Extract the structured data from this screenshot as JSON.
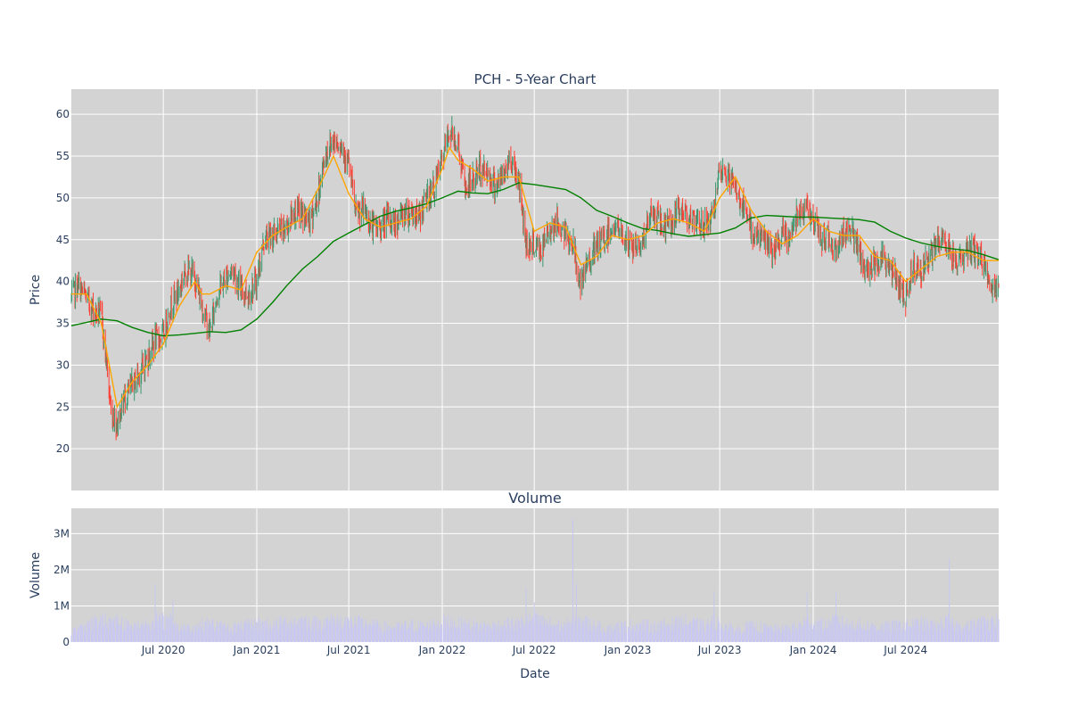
{
  "colors": {
    "plot_bg": "#d3d3d3",
    "grid": "#ffffff",
    "candle_up": "#3d9970",
    "candle_down": "#ff4136",
    "ma_short": "#ffa500",
    "ma_long": "#008000",
    "volume_bar": "#c8c8f0",
    "text": "#2a3f5f"
  },
  "chart_data": [
    {
      "type": "candlestick",
      "title": "PCH - 5-Year Chart",
      "xlabel": "",
      "ylabel": "Price",
      "ylim": [
        15.0,
        63.0
      ],
      "y_ticks": [
        20,
        25,
        30,
        35,
        40,
        45,
        50,
        55,
        60
      ],
      "x_range": [
        "2020-01-02",
        "2024-12-31"
      ],
      "grid": true,
      "series": [
        {
          "name": "",
          "kind": "close_path",
          "x": [
            "2020-01-02",
            "2020-01-15",
            "2020-02-01",
            "2020-02-15",
            "2020-03-01",
            "2020-03-10",
            "2020-03-20",
            "2020-04-01",
            "2020-04-15",
            "2020-05-01",
            "2020-05-15",
            "2020-06-01",
            "2020-06-15",
            "2020-07-01",
            "2020-07-15",
            "2020-08-01",
            "2020-08-15",
            "2020-09-01",
            "2020-09-15",
            "2020-10-01",
            "2020-10-15",
            "2020-11-01",
            "2020-11-15",
            "2020-12-01",
            "2020-12-15",
            "2021-01-01",
            "2021-01-15",
            "2021-02-01",
            "2021-02-15",
            "2021-03-01",
            "2021-03-15",
            "2021-04-01",
            "2021-04-15",
            "2021-05-01",
            "2021-05-15",
            "2021-06-01",
            "2021-06-15",
            "2021-07-01",
            "2021-07-15",
            "2021-08-01",
            "2021-08-15",
            "2021-09-01",
            "2021-09-15",
            "2021-10-01",
            "2021-10-15",
            "2021-11-01",
            "2021-11-15",
            "2021-12-01",
            "2021-12-15",
            "2022-01-01",
            "2022-01-15",
            "2022-02-01",
            "2022-02-15",
            "2022-03-01",
            "2022-03-15",
            "2022-04-01",
            "2022-04-15",
            "2022-05-01",
            "2022-05-15",
            "2022-06-01",
            "2022-06-15",
            "2022-07-01",
            "2022-07-15",
            "2022-08-01",
            "2022-08-15",
            "2022-09-01",
            "2022-09-15",
            "2022-10-01",
            "2022-10-15",
            "2022-11-01",
            "2022-11-15",
            "2022-12-01",
            "2022-12-15",
            "2023-01-01",
            "2023-01-15",
            "2023-02-01",
            "2023-02-15",
            "2023-03-01",
            "2023-03-15",
            "2023-04-01",
            "2023-04-15",
            "2023-05-01",
            "2023-05-15",
            "2023-06-01",
            "2023-06-15",
            "2023-07-01",
            "2023-07-15",
            "2023-08-01",
            "2023-08-15",
            "2023-09-01",
            "2023-09-15",
            "2023-10-01",
            "2023-10-15",
            "2023-11-01",
            "2023-11-15",
            "2023-12-01",
            "2023-12-15",
            "2024-01-01",
            "2024-01-15",
            "2024-02-01",
            "2024-02-15",
            "2024-03-01",
            "2024-03-15",
            "2024-04-01",
            "2024-04-15",
            "2024-05-01",
            "2024-05-15",
            "2024-06-01",
            "2024-06-15",
            "2024-07-01",
            "2024-07-15",
            "2024-08-01",
            "2024-08-15",
            "2024-09-01",
            "2024-09-15",
            "2024-10-01",
            "2024-10-15",
            "2024-11-01",
            "2024-11-15",
            "2024-12-01",
            "2024-12-15",
            "2024-12-31"
          ],
          "close": [
            38.0,
            39.5,
            38.0,
            36.5,
            36.0,
            31.0,
            24.5,
            23.0,
            26.0,
            27.5,
            29.0,
            31.0,
            33.0,
            33.5,
            37.0,
            39.0,
            41.5,
            40.5,
            37.0,
            34.0,
            38.5,
            40.5,
            41.5,
            39.0,
            38.5,
            40.0,
            45.0,
            45.5,
            46.0,
            46.5,
            48.5,
            48.0,
            47.0,
            50.0,
            55.0,
            57.0,
            56.5,
            54.0,
            48.0,
            48.5,
            46.5,
            46.5,
            47.5,
            47.0,
            48.0,
            48.5,
            47.5,
            50.0,
            51.0,
            54.5,
            58.0,
            56.5,
            51.0,
            52.0,
            53.5,
            53.0,
            51.5,
            52.5,
            55.0,
            52.0,
            44.5,
            44.5,
            43.5,
            46.5,
            47.0,
            45.5,
            44.5,
            39.0,
            42.5,
            44.0,
            45.0,
            46.5,
            46.0,
            44.5,
            44.0,
            45.0,
            48.0,
            47.5,
            46.5,
            47.5,
            48.5,
            48.0,
            46.5,
            47.0,
            47.5,
            52.5,
            53.0,
            51.0,
            49.0,
            46.0,
            45.5,
            45.0,
            43.0,
            45.5,
            45.0,
            48.5,
            49.0,
            47.5,
            45.0,
            45.5,
            43.5,
            46.0,
            46.5,
            43.0,
            41.0,
            42.5,
            43.0,
            41.5,
            40.0,
            38.0,
            42.0,
            41.5,
            42.5,
            44.5,
            45.0,
            43.0,
            42.5,
            44.0,
            43.5,
            42.5,
            39.0,
            38.5
          ]
        },
        {
          "name": "",
          "kind": "moving_average_short",
          "x": [
            "2020-01-02",
            "2020-02-01",
            "2020-03-01",
            "2020-03-20",
            "2020-04-01",
            "2020-05-01",
            "2020-06-01",
            "2020-07-01",
            "2020-08-01",
            "2020-09-01",
            "2020-09-15",
            "2020-10-01",
            "2020-11-01",
            "2020-12-01",
            "2021-01-01",
            "2021-02-01",
            "2021-03-01",
            "2021-04-01",
            "2021-05-01",
            "2021-06-01",
            "2021-07-01",
            "2021-08-01",
            "2021-09-01",
            "2021-10-01",
            "2021-11-01",
            "2021-12-01",
            "2022-01-01",
            "2022-01-15",
            "2022-02-01",
            "2022-03-01",
            "2022-04-01",
            "2022-05-01",
            "2022-06-01",
            "2022-07-01",
            "2022-08-01",
            "2022-09-01",
            "2022-10-01",
            "2022-11-01",
            "2022-12-01",
            "2023-01-01",
            "2023-02-01",
            "2023-03-01",
            "2023-04-01",
            "2023-05-01",
            "2023-06-01",
            "2023-07-01",
            "2023-08-01",
            "2023-09-01",
            "2023-10-01",
            "2023-11-01",
            "2023-12-01",
            "2024-01-01",
            "2024-02-01",
            "2024-03-01",
            "2024-04-01",
            "2024-05-01",
            "2024-06-01",
            "2024-07-01",
            "2024-08-01",
            "2024-09-01",
            "2024-10-01",
            "2024-11-01",
            "2024-12-01",
            "2024-12-31"
          ],
          "values": [
            38.5,
            38.5,
            35.0,
            29.0,
            25.0,
            28.0,
            30.0,
            32.5,
            37.0,
            40.0,
            38.5,
            38.5,
            39.5,
            39.0,
            43.5,
            45.5,
            46.5,
            47.5,
            51.0,
            55.0,
            50.5,
            47.5,
            46.5,
            47.0,
            47.5,
            49.0,
            53.5,
            56.0,
            54.5,
            53.5,
            52.0,
            52.5,
            52.5,
            46.0,
            47.0,
            46.5,
            42.0,
            43.0,
            45.5,
            45.0,
            45.5,
            47.0,
            47.5,
            47.0,
            46.0,
            50.0,
            52.5,
            48.5,
            46.0,
            44.5,
            45.5,
            47.5,
            46.0,
            45.5,
            45.5,
            43.0,
            42.5,
            40.0,
            41.5,
            43.0,
            43.5,
            43.5,
            42.5,
            42.5
          ]
        },
        {
          "name": "",
          "kind": "moving_average_long",
          "x": [
            "2020-01-02",
            "2020-03-01",
            "2020-04-01",
            "2020-05-01",
            "2020-06-01",
            "2020-07-01",
            "2020-08-01",
            "2020-09-01",
            "2020-10-01",
            "2020-11-01",
            "2020-12-01",
            "2021-01-01",
            "2021-02-01",
            "2021-03-01",
            "2021-04-01",
            "2021-05-01",
            "2021-06-01",
            "2021-07-01",
            "2021-08-01",
            "2021-09-01",
            "2021-10-01",
            "2021-11-01",
            "2021-12-01",
            "2022-01-01",
            "2022-02-01",
            "2022-03-01",
            "2022-04-01",
            "2022-05-01",
            "2022-06-01",
            "2022-07-01",
            "2022-08-01",
            "2022-09-01",
            "2022-10-01",
            "2022-11-01",
            "2022-12-01",
            "2023-01-01",
            "2023-02-01",
            "2023-03-01",
            "2023-04-01",
            "2023-05-01",
            "2023-06-01",
            "2023-07-01",
            "2023-08-01",
            "2023-09-01",
            "2023-10-01",
            "2023-11-01",
            "2023-12-01",
            "2024-01-01",
            "2024-02-01",
            "2024-03-01",
            "2024-04-01",
            "2024-05-01",
            "2024-06-01",
            "2024-07-01",
            "2024-08-01",
            "2024-09-01",
            "2024-10-01",
            "2024-11-01",
            "2024-12-01",
            "2024-12-31"
          ],
          "values": [
            34.7,
            35.5,
            35.3,
            34.5,
            33.9,
            33.5,
            33.6,
            33.8,
            34.0,
            33.9,
            34.2,
            35.5,
            37.5,
            39.5,
            41.5,
            43.0,
            44.8,
            45.8,
            46.8,
            47.8,
            48.4,
            48.8,
            49.3,
            50.0,
            50.8,
            50.6,
            50.5,
            51.0,
            51.8,
            51.6,
            51.3,
            51.0,
            50.0,
            48.5,
            47.8,
            47.0,
            46.3,
            46.1,
            45.7,
            45.4,
            45.6,
            45.8,
            46.4,
            47.6,
            47.9,
            47.8,
            47.7,
            47.7,
            47.6,
            47.5,
            47.4,
            47.1,
            46.0,
            45.2,
            44.6,
            44.2,
            43.9,
            43.7,
            43.2,
            42.6
          ]
        }
      ]
    },
    {
      "type": "bar",
      "title": "Volume",
      "xlabel": "Date",
      "ylabel": "Volume",
      "ylim": [
        0,
        3700000
      ],
      "y_ticks": [
        0,
        1000000,
        2000000,
        3000000
      ],
      "y_tick_labels": [
        "0",
        "1M",
        "2M",
        "3M"
      ],
      "x_range": [
        "2020-01-02",
        "2024-12-31"
      ],
      "x_ticks": [
        "2020-07-01",
        "2021-01-01",
        "2021-07-01",
        "2022-01-01",
        "2022-07-01",
        "2023-01-01",
        "2023-07-01",
        "2024-01-01",
        "2024-07-01"
      ],
      "x_tick_labels": [
        "Jul 2020",
        "Jan 2021",
        "Jul 2021",
        "Jan 2022",
        "Jul 2022",
        "Jan 2023",
        "Jul 2023",
        "Jan 2024",
        "Jul 2024"
      ],
      "grid": true,
      "series": [
        {
          "name": "",
          "x": [
            "2020-01-02",
            "2020-02-01",
            "2020-03-01",
            "2020-03-20",
            "2020-04-01",
            "2020-05-01",
            "2020-06-01",
            "2020-06-15",
            "2020-07-01",
            "2020-07-20",
            "2020-08-01",
            "2020-09-01",
            "2020-10-01",
            "2020-11-01",
            "2020-12-01",
            "2021-01-01",
            "2021-02-01",
            "2021-03-01",
            "2021-04-01",
            "2021-05-01",
            "2021-06-01",
            "2021-07-01",
            "2021-08-01",
            "2021-09-01",
            "2021-10-01",
            "2021-11-01",
            "2021-12-01",
            "2022-01-01",
            "2022-02-01",
            "2022-03-01",
            "2022-04-01",
            "2022-05-01",
            "2022-06-01",
            "2022-06-15",
            "2022-07-01",
            "2022-08-01",
            "2022-09-01",
            "2022-09-15",
            "2022-09-22",
            "2022-10-01",
            "2022-11-01",
            "2022-12-01",
            "2023-01-01",
            "2023-02-01",
            "2023-03-01",
            "2023-04-01",
            "2023-05-01",
            "2023-06-01",
            "2023-06-20",
            "2023-07-01",
            "2023-08-01",
            "2023-09-01",
            "2023-10-01",
            "2023-11-01",
            "2023-12-01",
            "2023-12-20",
            "2024-01-01",
            "2024-02-01",
            "2024-02-15",
            "2024-03-01",
            "2024-04-01",
            "2024-05-01",
            "2024-06-01",
            "2024-07-01",
            "2024-08-01",
            "2024-09-01",
            "2024-09-25",
            "2024-10-01",
            "2024-11-01",
            "2024-12-01",
            "2024-12-31"
          ],
          "values": [
            350000,
            550000,
            800000,
            850000,
            700000,
            500000,
            600000,
            1600000,
            700000,
            1150000,
            450000,
            500000,
            600000,
            450000,
            500000,
            600000,
            550000,
            650000,
            900000,
            600000,
            700000,
            650000,
            600000,
            500000,
            450000,
            550000,
            500000,
            650000,
            600000,
            550000,
            500000,
            550000,
            600000,
            1500000,
            1100000,
            600000,
            500000,
            3400000,
            1600000,
            1100000,
            500000,
            450000,
            550000,
            550000,
            500000,
            600000,
            650000,
            500000,
            1400000,
            550000,
            400000,
            500000,
            450000,
            400000,
            500000,
            1400000,
            600000,
            550000,
            1400000,
            600000,
            550000,
            500000,
            500000,
            550000,
            600000,
            500000,
            2300000,
            550000,
            500000,
            650000,
            700000
          ]
        }
      ]
    }
  ]
}
